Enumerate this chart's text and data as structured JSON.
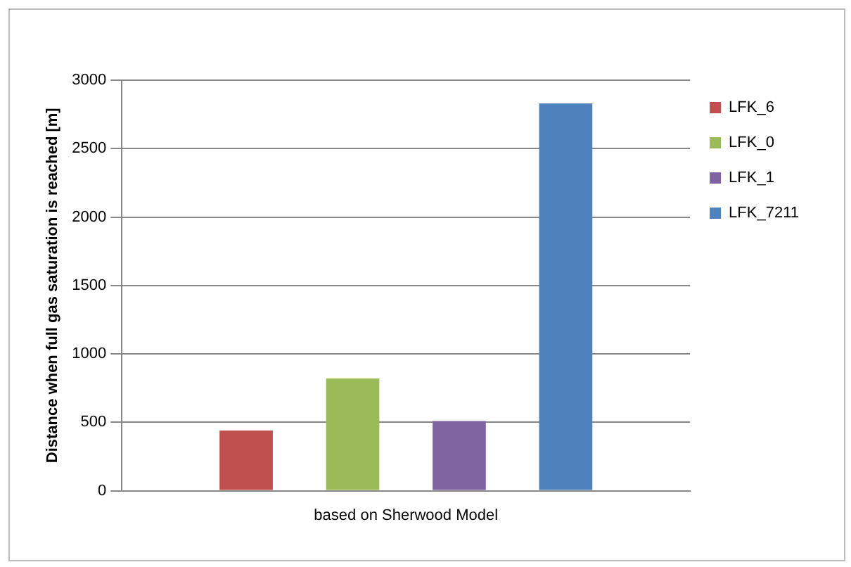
{
  "chart_data": {
    "type": "bar",
    "ylabel": "Distance when full gas saturation is reached [m]",
    "categories": [
      "based on Sherwood Model"
    ],
    "series": [
      {
        "name": "LFK_6",
        "color": "#c0504d",
        "values": [
          440
        ]
      },
      {
        "name": "LFK_0",
        "color": "#9bbb59",
        "values": [
          820
        ]
      },
      {
        "name": "LFK_1",
        "color": "#8064a2",
        "values": [
          510
        ]
      },
      {
        "name": "LFK_7211",
        "color": "#4f81bd",
        "values": [
          2830
        ]
      }
    ],
    "ylim": [
      0,
      3000
    ],
    "yticks": [
      0,
      500,
      1000,
      1500,
      2000,
      2500,
      3000
    ],
    "grid": "y",
    "legend": "top right"
  }
}
